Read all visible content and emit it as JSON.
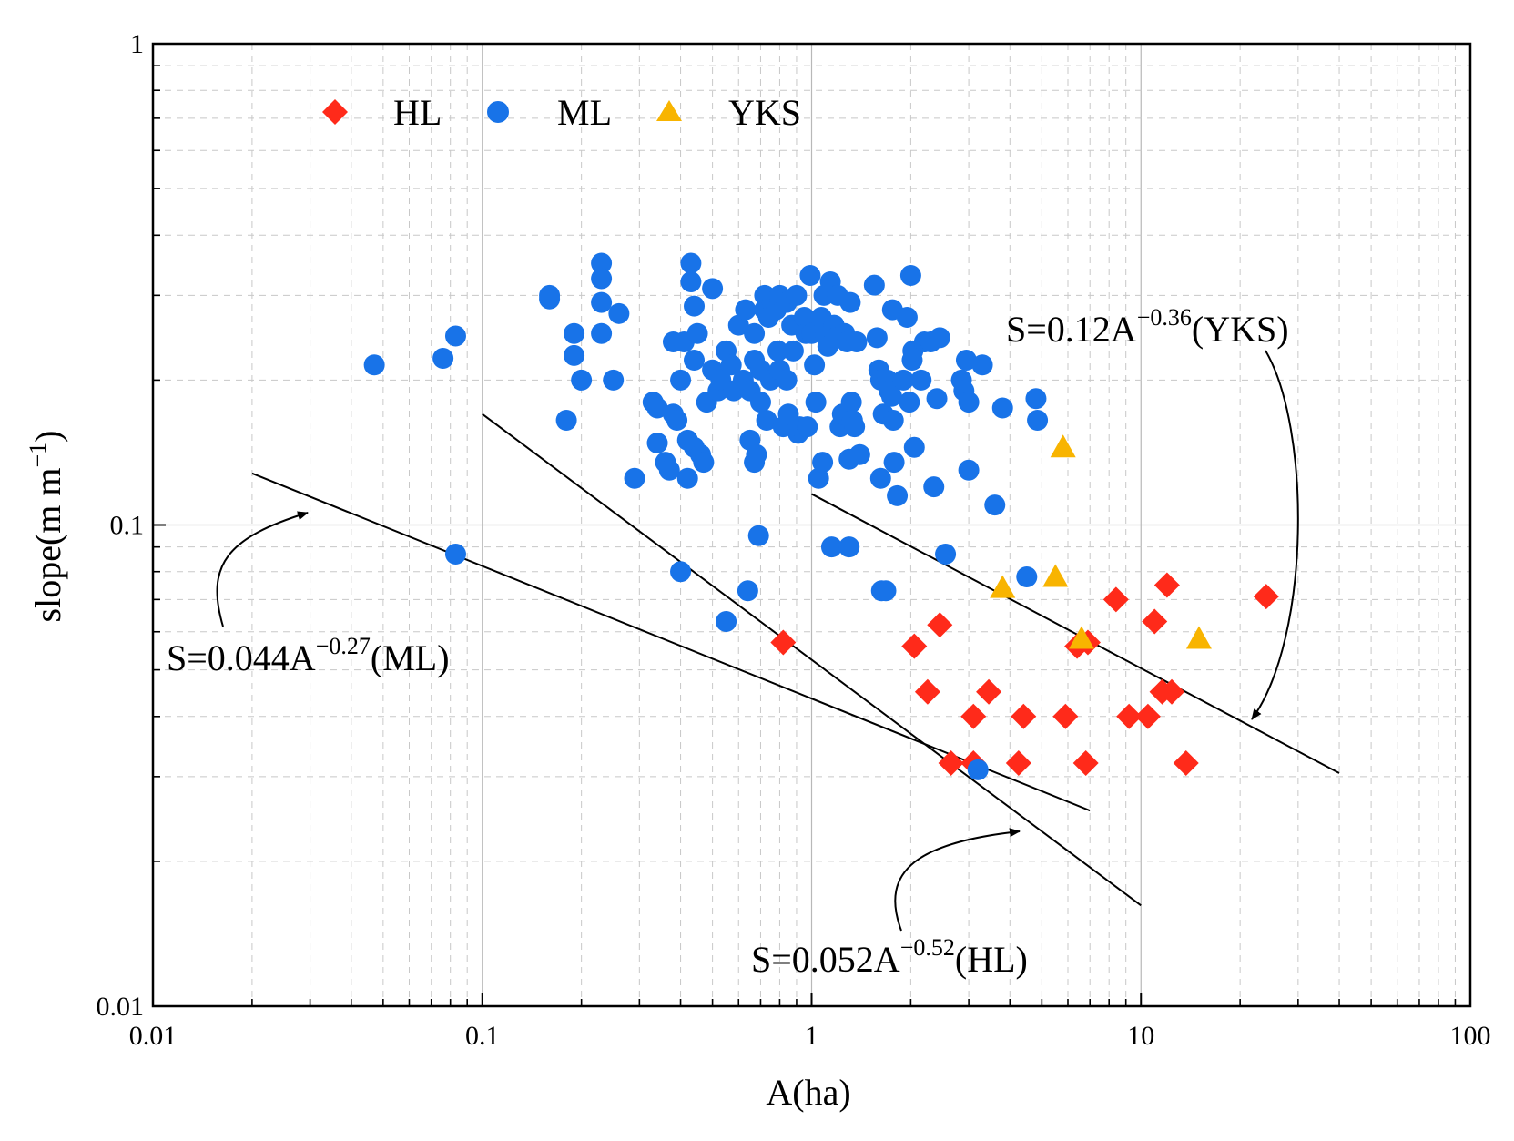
{
  "chart_data": {
    "type": "scatter",
    "xscale": "log",
    "yscale": "log",
    "xlabel": "A(ha)",
    "ylabel_base": "slope(m m",
    "ylabel_exp": "−1",
    "ylabel_close": ")",
    "xlim": [
      0.01,
      100
    ],
    "ylim": [
      0.01,
      1
    ],
    "xticks": [
      0.01,
      0.1,
      1,
      10,
      100
    ],
    "xtick_labels": [
      "0.01",
      "0.1",
      "1",
      "10",
      "100"
    ],
    "yticks": [
      0.01,
      0.1,
      1
    ],
    "ytick_labels": [
      "0.01",
      "0.1",
      "1"
    ],
    "grid": true,
    "legend_position": "top-left",
    "series": [
      {
        "name": "HL",
        "marker": "diamond",
        "color": "#ff2a1a",
        "points": [
          [
            0.82,
            0.057
          ],
          [
            2.05,
            0.056
          ],
          [
            2.45,
            0.062
          ],
          [
            2.25,
            0.045
          ],
          [
            3.1,
            0.04
          ],
          [
            3.45,
            0.045
          ],
          [
            4.4,
            0.04
          ],
          [
            5.9,
            0.04
          ],
          [
            2.65,
            0.032
          ],
          [
            3.1,
            0.032
          ],
          [
            4.25,
            0.032
          ],
          [
            6.8,
            0.032
          ],
          [
            6.4,
            0.056
          ],
          [
            6.9,
            0.057
          ],
          [
            8.4,
            0.07
          ],
          [
            9.2,
            0.04
          ],
          [
            10.5,
            0.04
          ],
          [
            11.0,
            0.063
          ],
          [
            11.6,
            0.045
          ],
          [
            12.4,
            0.045
          ],
          [
            12.0,
            0.075
          ],
          [
            13.7,
            0.032
          ],
          [
            24.0,
            0.071
          ]
        ]
      },
      {
        "name": "ML",
        "marker": "circle",
        "color": "#1873e8",
        "points": [
          [
            0.047,
            0.215
          ],
          [
            0.076,
            0.222
          ],
          [
            0.083,
            0.247
          ],
          [
            0.083,
            0.087
          ],
          [
            0.16,
            0.3
          ],
          [
            0.16,
            0.295
          ],
          [
            0.18,
            0.165
          ],
          [
            0.19,
            0.25
          ],
          [
            0.19,
            0.225
          ],
          [
            0.2,
            0.2
          ],
          [
            0.23,
            0.35
          ],
          [
            0.23,
            0.325
          ],
          [
            0.23,
            0.29
          ],
          [
            0.23,
            0.25
          ],
          [
            0.25,
            0.2
          ],
          [
            0.26,
            0.275
          ],
          [
            0.29,
            0.125
          ],
          [
            0.33,
            0.18
          ],
          [
            0.34,
            0.175
          ],
          [
            0.34,
            0.148
          ],
          [
            0.36,
            0.135
          ],
          [
            0.37,
            0.13
          ],
          [
            0.38,
            0.24
          ],
          [
            0.38,
            0.17
          ],
          [
            0.39,
            0.165
          ],
          [
            0.4,
            0.2
          ],
          [
            0.4,
            0.08
          ],
          [
            0.41,
            0.24
          ],
          [
            0.42,
            0.15
          ],
          [
            0.42,
            0.125
          ],
          [
            0.43,
            0.32
          ],
          [
            0.43,
            0.35
          ],
          [
            0.44,
            0.285
          ],
          [
            0.44,
            0.145
          ],
          [
            0.44,
            0.22
          ],
          [
            0.45,
            0.25
          ],
          [
            0.46,
            0.14
          ],
          [
            0.47,
            0.135
          ],
          [
            0.48,
            0.18
          ],
          [
            0.5,
            0.31
          ],
          [
            0.5,
            0.21
          ],
          [
            0.52,
            0.19
          ],
          [
            0.53,
            0.2
          ],
          [
            0.55,
            0.23
          ],
          [
            0.55,
            0.063
          ],
          [
            0.57,
            0.215
          ],
          [
            0.58,
            0.19
          ],
          [
            0.6,
            0.26
          ],
          [
            0.62,
            0.2
          ],
          [
            0.63,
            0.28
          ],
          [
            0.64,
            0.073
          ],
          [
            0.65,
            0.19
          ],
          [
            0.65,
            0.15
          ],
          [
            0.67,
            0.25
          ],
          [
            0.67,
            0.22
          ],
          [
            0.67,
            0.135
          ],
          [
            0.68,
            0.14
          ],
          [
            0.69,
            0.095
          ],
          [
            0.7,
            0.21
          ],
          [
            0.7,
            0.18
          ],
          [
            0.72,
            0.3
          ],
          [
            0.72,
            0.28
          ],
          [
            0.73,
            0.165
          ],
          [
            0.74,
            0.27
          ],
          [
            0.75,
            0.2
          ],
          [
            0.76,
            0.29
          ],
          [
            0.78,
            0.28
          ],
          [
            0.79,
            0.23
          ],
          [
            0.8,
            0.3
          ],
          [
            0.8,
            0.21
          ],
          [
            0.82,
            0.16
          ],
          [
            0.84,
            0.29
          ],
          [
            0.84,
            0.2
          ],
          [
            0.85,
            0.17
          ],
          [
            0.87,
            0.26
          ],
          [
            0.88,
            0.23
          ],
          [
            0.9,
            0.3
          ],
          [
            0.91,
            0.155
          ],
          [
            0.92,
            0.16
          ],
          [
            0.95,
            0.27
          ],
          [
            0.96,
            0.25
          ],
          [
            0.97,
            0.16
          ],
          [
            0.99,
            0.33
          ],
          [
            1.0,
            0.25
          ],
          [
            1.02,
            0.215
          ],
          [
            1.03,
            0.18
          ],
          [
            1.05,
            0.125
          ],
          [
            1.07,
            0.27
          ],
          [
            1.08,
            0.135
          ],
          [
            1.09,
            0.3
          ],
          [
            1.1,
            0.25
          ],
          [
            1.12,
            0.235
          ],
          [
            1.14,
            0.32
          ],
          [
            1.15,
            0.09
          ],
          [
            1.17,
            0.26
          ],
          [
            1.18,
            0.245
          ],
          [
            1.2,
            0.3
          ],
          [
            1.22,
            0.16
          ],
          [
            1.24,
            0.17
          ],
          [
            1.26,
            0.25
          ],
          [
            1.28,
            0.24
          ],
          [
            1.3,
            0.09
          ],
          [
            1.3,
            0.137
          ],
          [
            1.31,
            0.29
          ],
          [
            1.32,
            0.18
          ],
          [
            1.33,
            0.165
          ],
          [
            1.35,
            0.16
          ],
          [
            1.37,
            0.24
          ],
          [
            1.4,
            0.14
          ],
          [
            1.55,
            0.315
          ],
          [
            1.58,
            0.245
          ],
          [
            1.6,
            0.21
          ],
          [
            1.62,
            0.2
          ],
          [
            1.62,
            0.125
          ],
          [
            1.63,
            0.073
          ],
          [
            1.65,
            0.17
          ],
          [
            1.68,
            0.073
          ],
          [
            1.7,
            0.2
          ],
          [
            1.72,
            0.19
          ],
          [
            1.75,
            0.185
          ],
          [
            1.76,
            0.28
          ],
          [
            1.77,
            0.165
          ],
          [
            1.78,
            0.135
          ],
          [
            1.82,
            0.115
          ],
          [
            1.9,
            0.2
          ],
          [
            1.95,
            0.27
          ],
          [
            1.98,
            0.18
          ],
          [
            2.0,
            0.33
          ],
          [
            2.02,
            0.22
          ],
          [
            2.03,
            0.23
          ],
          [
            2.05,
            0.145
          ],
          [
            2.15,
            0.2
          ],
          [
            2.2,
            0.24
          ],
          [
            2.3,
            0.24
          ],
          [
            2.35,
            0.12
          ],
          [
            2.4,
            0.183
          ],
          [
            2.45,
            0.245
          ],
          [
            2.55,
            0.087
          ],
          [
            2.85,
            0.2
          ],
          [
            2.9,
            0.19
          ],
          [
            2.95,
            0.22
          ],
          [
            3.0,
            0.18
          ],
          [
            3.0,
            0.13
          ],
          [
            3.2,
            0.031
          ],
          [
            3.3,
            0.215
          ],
          [
            3.6,
            0.11
          ],
          [
            3.8,
            0.175
          ],
          [
            4.5,
            0.078
          ],
          [
            4.8,
            0.183
          ],
          [
            4.85,
            0.165
          ]
        ]
      },
      {
        "name": "YKS",
        "marker": "triangle",
        "color": "#f8b400",
        "points": [
          [
            3.8,
            0.074
          ],
          [
            5.5,
            0.078
          ],
          [
            5.8,
            0.145
          ],
          [
            6.6,
            0.058
          ],
          [
            15.0,
            0.058
          ]
        ]
      }
    ],
    "fit_lines": [
      {
        "name": "ML",
        "equation_prefix": "S=0.044A",
        "exponent": "−0.27",
        "suffix": "(ML)",
        "x": [
          0.02,
          7.0
        ],
        "y": [
          0.128,
          0.0255
        ]
      },
      {
        "name": "HL",
        "equation_prefix": "S=0.052A",
        "exponent": "−0.52",
        "suffix": "(HL)",
        "x": [
          0.1,
          10.0
        ],
        "y": [
          0.17,
          0.0162
        ]
      },
      {
        "name": "YKS",
        "equation_prefix": "S=0.12A",
        "exponent": "−0.36",
        "suffix": "(YKS)",
        "x": [
          1.0,
          40.0
        ],
        "y": [
          0.116,
          0.0305
        ]
      }
    ]
  }
}
